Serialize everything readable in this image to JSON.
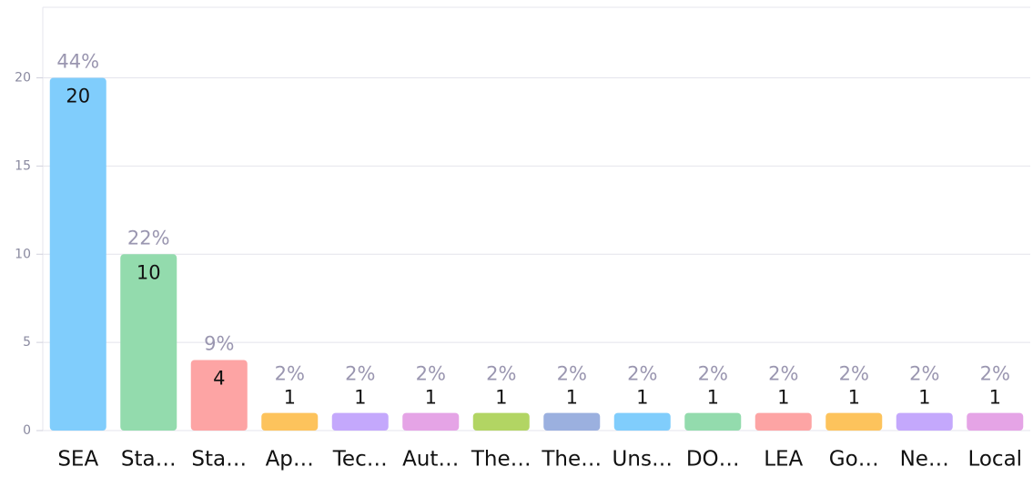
{
  "chart_data": {
    "type": "bar",
    "categories": [
      "SEA",
      "Sta…",
      "Sta…",
      "Ap…",
      "Tec…",
      "Aut…",
      "The…",
      "The…",
      "Uns…",
      "DO…",
      "LEA",
      "Go…",
      "Ne…",
      "Local"
    ],
    "values": [
      20,
      10,
      4,
      1,
      1,
      1,
      1,
      1,
      1,
      1,
      1,
      1,
      1,
      1
    ],
    "percent_labels": [
      "44%",
      "22%",
      "9%",
      "2%",
      "2%",
      "2%",
      "2%",
      "2%",
      "2%",
      "2%",
      "2%",
      "2%",
      "2%",
      "2%"
    ],
    "colors": [
      "#80cdfc",
      "#93dbad",
      "#fda4a4",
      "#fdc35c",
      "#c4a8fc",
      "#e5a4e6",
      "#b2d563",
      "#9bb0df",
      "#80cdfc",
      "#93dbad",
      "#fda4a4",
      "#fdc35c",
      "#c4a8fc",
      "#e5a4e6"
    ],
    "ylim": [
      0,
      24
    ],
    "yticks": [
      0,
      5,
      10,
      15,
      20
    ],
    "grid": true
  }
}
